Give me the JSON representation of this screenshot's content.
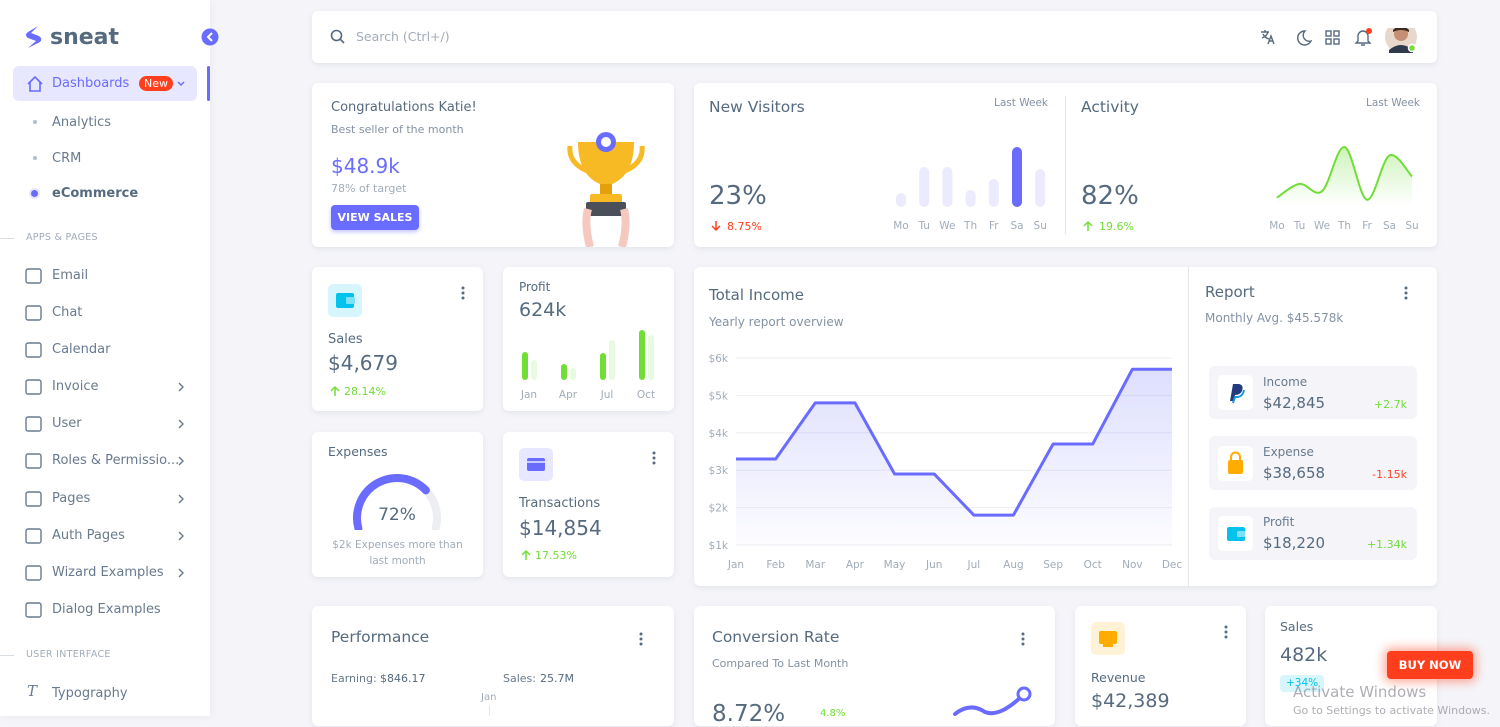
{
  "sidebar": {
    "logo": "sneat",
    "dashboards": {
      "label": "Dashboards",
      "badge": "New",
      "items": [
        "Analytics",
        "CRM",
        "eCommerce"
      ]
    },
    "sections": [
      {
        "title": "APPS & PAGES",
        "items": [
          "Email",
          "Chat",
          "Calendar",
          "Invoice",
          "User",
          "Roles & Permissio...",
          "Pages",
          "Auth Pages",
          "Wizard Examples",
          "Dialog Examples"
        ]
      },
      {
        "title": "USER INTERFACE",
        "items": [
          "Typography"
        ]
      }
    ]
  },
  "topbar": {
    "search": "Search (Ctrl+/)"
  },
  "congrats": {
    "title": "Congratulations Katie!",
    "subtitle": "Best seller of the month",
    "value": "$48.9k",
    "note": "78% of target",
    "button": "VIEW SALES"
  },
  "new_visitors": {
    "title": "New Visitors",
    "period": "Last Week",
    "value": "23%",
    "change": "8.75%",
    "chart_data": {
      "type": "bar",
      "categories": [
        "Mo",
        "Tu",
        "We",
        "Th",
        "Fr",
        "Sa",
        "Su"
      ],
      "values": [
        14,
        40,
        40,
        17,
        28,
        60,
        38
      ],
      "colors": [
        "#ebeaff",
        "#ebeaff",
        "#ebeaff",
        "#ebeaff",
        "#ebeaff",
        "#696cff",
        "#ebeaff"
      ]
    }
  },
  "activity": {
    "title": "Activity",
    "period": "Last Week",
    "value": "82%",
    "change": "19.6%",
    "chart_data": {
      "type": "line",
      "categories": [
        "Mo",
        "Tu",
        "We",
        "Th",
        "Fr",
        "Sa",
        "Su"
      ],
      "values": [
        7,
        20,
        13,
        55,
        5,
        47,
        27
      ],
      "color": "#71dd37"
    }
  },
  "sales_card": {
    "title": "Sales",
    "value": "$4,679",
    "change": "28.14%"
  },
  "profit": {
    "title": "Profit",
    "value": "624k",
    "chart_data": {
      "type": "bar",
      "categories": [
        "Jan",
        "Apr",
        "Jul",
        "Oct"
      ],
      "series": [
        {
          "color": "#71dd37",
          "values": [
            28,
            16,
            27,
            50
          ]
        },
        {
          "color": "#e8fadf",
          "values": [
            20,
            12,
            40,
            45
          ]
        }
      ]
    }
  },
  "expenses": {
    "title": "Expenses",
    "note": "$2k Expenses more than last month",
    "chart_data": {
      "type": "gauge",
      "values": [
        72
      ],
      "value_labels": [
        "72%"
      ],
      "color": "#696cff",
      "ylim": [
        0,
        100
      ]
    }
  },
  "transactions": {
    "title": "Transactions",
    "value": "$14,854",
    "change": "17.53%"
  },
  "total_income": {
    "chart_data": {
      "type": "line",
      "title": "Total Income",
      "subtitle": "Yearly report overview",
      "categories": [
        "Jan",
        "Feb",
        "Mar",
        "Apr",
        "May",
        "Jun",
        "Jul",
        "Aug",
        "Sep",
        "Oct",
        "Nov",
        "Dec"
      ],
      "values": [
        3300,
        3300,
        4800,
        4800,
        2900,
        2900,
        1800,
        1800,
        3700,
        3700,
        5700,
        5700
      ],
      "color": "#696cff",
      "ylim": [
        1000,
        6000
      ],
      "yticks": [
        {
          "value": 1000,
          "label": "$1k"
        },
        {
          "value": 2000,
          "label": "$2k"
        },
        {
          "value": 3000,
          "label": "$3k"
        },
        {
          "value": 4000,
          "label": "$4k"
        },
        {
          "value": 5000,
          "label": "$5k"
        },
        {
          "value": 6000,
          "label": "$6k"
        }
      ],
      "grid": true
    }
  },
  "report": {
    "title": "Report",
    "subtitle": "Monthly Avg. $45.578k",
    "items": [
      {
        "label": "Income",
        "value": "$42,845",
        "change": "+2.7k"
      },
      {
        "label": "Expense",
        "value": "$38,658",
        "change": "-1.15k"
      },
      {
        "label": "Profit",
        "value": "$18,220",
        "change": "+1.34k"
      }
    ]
  },
  "performance": {
    "title": "Performance",
    "earning_label": "Earning:",
    "earning": "$846.17",
    "sales_label": "Sales:",
    "sales": "25.7M",
    "radar_label": "Jan"
  },
  "conversion": {
    "title": "Conversion Rate",
    "subtitle": "Compared To Last Month",
    "value": "8.72%",
    "change": "4.8%"
  },
  "revenue": {
    "title": "Revenue",
    "value": "$42,389"
  },
  "sales_small": {
    "title": "Sales",
    "value": "482k",
    "change": "+34%"
  },
  "buy_now": "BUY NOW",
  "watermark": {
    "title": "Activate Windows",
    "note": "Go to Settings to activate Windows."
  }
}
